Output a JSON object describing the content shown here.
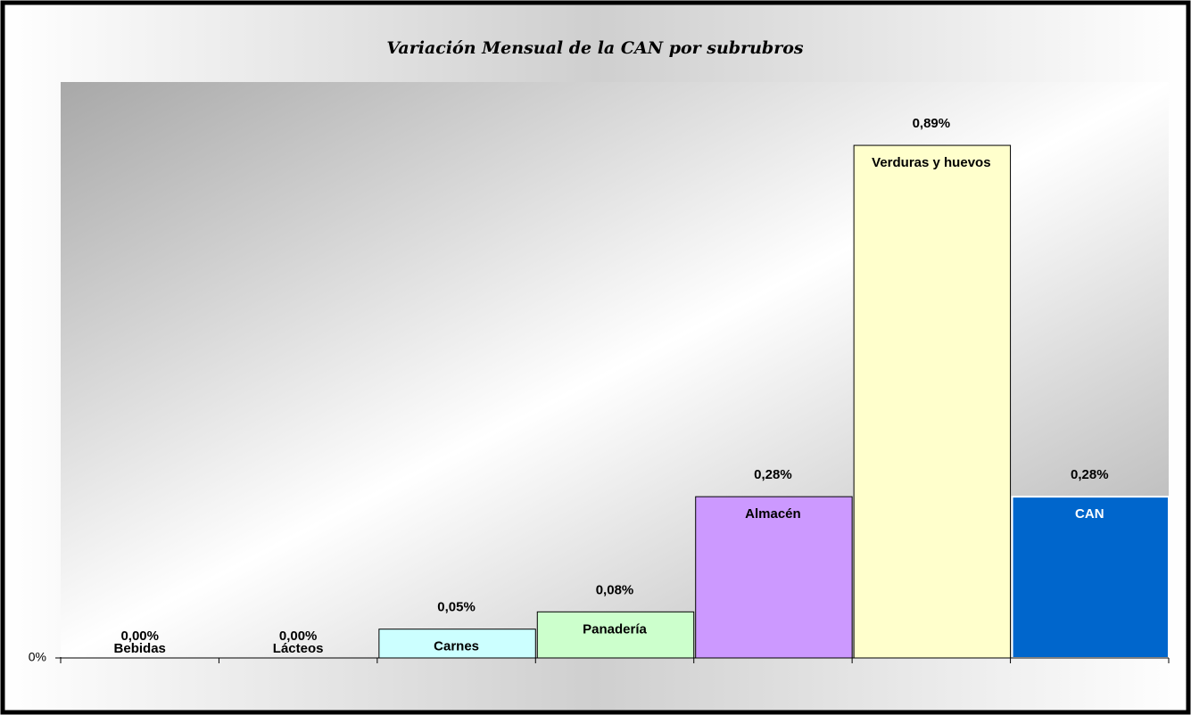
{
  "chart_data": {
    "type": "bar",
    "title": "Variación Mensual de la CAN por subrubros",
    "categories": [
      "Bebidas",
      "Lácteos",
      "Carnes",
      "Panadería",
      "Almacén",
      "Verduras y huevos",
      "CAN"
    ],
    "values": [
      0,
      0,
      0.05,
      0.08,
      0.28,
      0.89,
      0.28
    ],
    "value_labels": [
      "0,00%",
      "0,00%",
      "0,05%",
      "0,08%",
      "0,28%",
      "0,89%",
      "0,28%"
    ],
    "colors": [
      "#ffffff",
      "#ffffff",
      "#ccffff",
      "#ccffcc",
      "#cc99ff",
      "#ffffcc",
      "#0066cc"
    ],
    "ylim": [
      0,
      1
    ],
    "yticks": [
      {
        "value": 0,
        "label": "0%"
      }
    ]
  }
}
